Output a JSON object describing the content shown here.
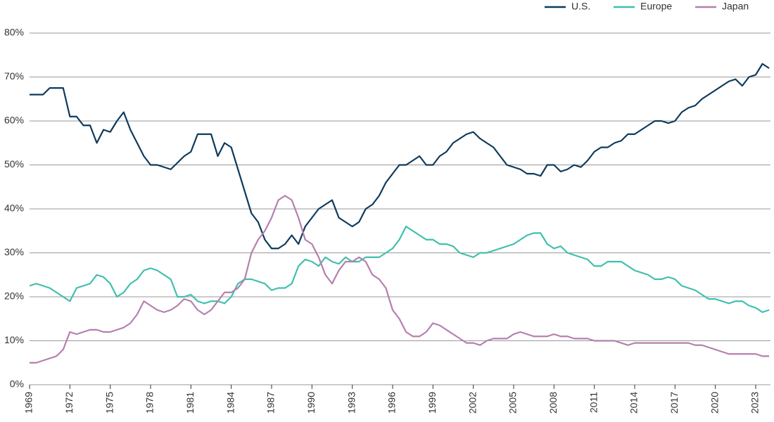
{
  "chart_data": {
    "type": "line",
    "x": [
      1969,
      1969.5,
      1970,
      1970.5,
      1971,
      1971.5,
      1972,
      1972.5,
      1973,
      1973.5,
      1974,
      1974.5,
      1975,
      1975.5,
      1976,
      1976.5,
      1977,
      1977.5,
      1978,
      1978.5,
      1979,
      1979.5,
      1980,
      1980.5,
      1981,
      1981.5,
      1982,
      1982.5,
      1983,
      1983.5,
      1984,
      1984.5,
      1985,
      1985.5,
      1986,
      1986.5,
      1987,
      1987.5,
      1988,
      1988.5,
      1989,
      1989.5,
      1990,
      1990.5,
      1991,
      1991.5,
      1992,
      1992.5,
      1993,
      1993.5,
      1994,
      1994.5,
      1995,
      1995.5,
      1996,
      1996.5,
      1997,
      1997.5,
      1998,
      1998.5,
      1999,
      1999.5,
      2000,
      2000.5,
      2001,
      2001.5,
      2002,
      2002.5,
      2003,
      2003.5,
      2004,
      2004.5,
      2005,
      2005.5,
      2006,
      2006.5,
      2007,
      2007.5,
      2008,
      2008.5,
      2009,
      2009.5,
      2010,
      2010.5,
      2011,
      2011.5,
      2012,
      2012.5,
      2013,
      2013.5,
      2014,
      2014.5,
      2015,
      2015.5,
      2016,
      2016.5,
      2017,
      2017.5,
      2018,
      2018.5,
      2019,
      2019.5,
      2020,
      2020.5,
      2021,
      2021.5,
      2022,
      2022.5,
      2023,
      2023.5,
      2024
    ],
    "series": [
      {
        "name": "U.S.",
        "color": "#0d3a5c",
        "values": [
          66,
          66,
          66,
          67.5,
          67.5,
          67.5,
          61,
          61,
          59,
          59,
          55,
          58,
          57.5,
          60,
          62,
          58,
          55,
          52,
          50,
          50,
          49.5,
          49,
          50.5,
          52,
          53,
          57,
          57,
          57,
          52,
          55,
          54,
          49,
          44,
          39,
          37,
          33,
          31,
          31,
          32,
          34,
          32,
          36,
          38,
          40,
          41,
          42,
          38,
          37,
          36,
          37,
          40,
          41,
          43,
          46,
          48,
          50,
          50,
          51,
          52,
          50,
          50,
          52,
          53,
          55,
          56,
          57,
          57.5,
          56,
          55,
          54,
          52,
          50,
          49.5,
          49,
          48,
          48,
          47.5,
          50,
          50,
          48.5,
          49,
          50,
          49.5,
          51,
          53,
          54,
          54,
          55,
          55.5,
          57,
          57,
          58,
          59,
          60,
          60,
          59.5,
          60,
          62,
          63,
          63.5,
          65,
          66,
          67,
          68,
          69,
          69.5,
          68,
          70,
          70.5,
          73,
          72
        ]
      },
      {
        "name": "Europe",
        "color": "#3fbfad",
        "values": [
          22.5,
          23,
          22.5,
          22,
          21,
          20,
          19,
          22,
          22.5,
          23,
          25,
          24.5,
          23,
          20,
          21,
          23,
          24,
          26,
          26.5,
          26,
          25,
          24,
          20,
          20,
          20.5,
          19,
          18.5,
          19,
          19,
          18.5,
          20,
          23,
          24,
          24,
          23.5,
          23,
          21.5,
          22,
          22,
          23,
          27,
          28.5,
          28,
          27,
          29,
          28,
          27.5,
          29,
          28,
          28,
          29,
          29,
          29,
          30,
          31,
          33,
          36,
          35,
          34,
          33,
          33,
          32,
          32,
          31.5,
          30,
          29.5,
          29,
          30,
          30,
          30.5,
          31,
          31.5,
          32,
          33,
          34,
          34.5,
          34.5,
          32,
          31,
          31.5,
          30,
          29.5,
          29,
          28.5,
          27,
          27,
          28,
          28,
          28,
          27,
          26,
          25.5,
          25,
          24,
          24,
          24.5,
          24,
          22.5,
          22,
          21.5,
          20.5,
          19.5,
          19.5,
          19,
          18.5,
          19,
          19,
          18,
          17.5,
          16.5,
          17
        ]
      },
      {
        "name": "Japan",
        "color": "#b57fae",
        "values": [
          5,
          5,
          5.5,
          6,
          6.5,
          8,
          12,
          11.5,
          12,
          12.5,
          12.5,
          12,
          12,
          12.5,
          13,
          14,
          16,
          19,
          18,
          17,
          16.5,
          17,
          18,
          19.5,
          19,
          17,
          16,
          17,
          19,
          21,
          21,
          22,
          24,
          30,
          33,
          35,
          38,
          42,
          43,
          42,
          38,
          33,
          32,
          29,
          25,
          23,
          26,
          28,
          28,
          29,
          28,
          25,
          24,
          22,
          17,
          15,
          12,
          11,
          11,
          12,
          14,
          13.5,
          12.5,
          11.5,
          10.5,
          9.5,
          9.5,
          9,
          10,
          10.5,
          10.5,
          10.5,
          11.5,
          12,
          11.5,
          11,
          11,
          11,
          11.5,
          11,
          11,
          10.5,
          10.5,
          10.5,
          10,
          10,
          10,
          10,
          9.5,
          9,
          9.5,
          9.5,
          9.5,
          9.5,
          9.5,
          9.5,
          9.5,
          9.5,
          9.5,
          9,
          9,
          8.5,
          8,
          7.5,
          7,
          7,
          7,
          7,
          7,
          6.5,
          6.5
        ]
      }
    ],
    "xlim": [
      1969,
      2024.1
    ],
    "xticks": [
      1969,
      1972,
      1975,
      1978,
      1981,
      1984,
      1987,
      1990,
      1993,
      1996,
      1999,
      2002,
      2005,
      2008,
      2011,
      2014,
      2017,
      2020,
      2023
    ],
    "ylim": [
      0,
      80
    ],
    "yticks": [
      {
        "value": 0,
        "label": "0%"
      },
      {
        "value": 10,
        "label": "10%"
      },
      {
        "value": 20,
        "label": "20%"
      },
      {
        "value": 30,
        "label": "30%"
      },
      {
        "value": 40,
        "label": "40%"
      },
      {
        "value": 50,
        "label": "50%"
      },
      {
        "value": 60,
        "label": "60%"
      },
      {
        "value": 70,
        "label": "70%"
      },
      {
        "value": 80,
        "label": "80%"
      }
    ],
    "grid": true,
    "legend": "top-right"
  }
}
